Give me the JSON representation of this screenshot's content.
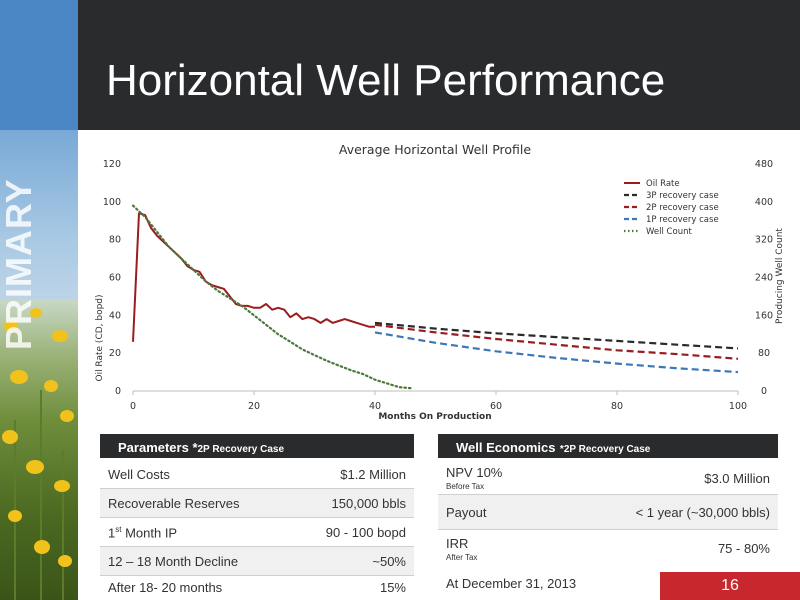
{
  "slide": {
    "title": "Horizontal Well Performance",
    "side_word": "PRIMARY",
    "footer_date": "At December 31, 2013",
    "page_number": "16"
  },
  "parameters_table": {
    "title": "Parameters *",
    "title_suffix": "2P Recovery Case",
    "rows": [
      {
        "label": "Well Costs",
        "value": "$1.2 Million"
      },
      {
        "label": "Recoverable Reserves",
        "value": "150,000 bbls"
      },
      {
        "label_main": "1",
        "label_sup": "st",
        "label_rest": " Month IP",
        "value": "90 - 100  bopd"
      },
      {
        "label": "12 – 18 Month Decline",
        "value": "~50%"
      },
      {
        "label": "After 18- 20 months",
        "value": "15%"
      }
    ]
  },
  "economics_table": {
    "title": "Well Economics",
    "title_suffix": "*2P Recovery Case",
    "rows": [
      {
        "label": "NPV 10%",
        "note": "Before Tax",
        "value": "$3.0 Million"
      },
      {
        "label": "Payout",
        "note": "",
        "value": "< 1 year (~30,000 bbls)"
      },
      {
        "label": "IRR",
        "note": "After Tax",
        "value": "75 - 80%"
      }
    ]
  },
  "colors": {
    "oil_rate": "#9b1c1f",
    "p3": "#2a2a2a",
    "p2": "#9b1c1f",
    "p1": "#3d77b8",
    "well_count": "#4d7a3a",
    "page_badge": "#c8272d",
    "header": "#2a2b2d"
  },
  "chart_data": {
    "type": "line",
    "title": "Average Horizontal Well  Profile",
    "xlabel": "Months On Production",
    "ylabel": "Oil Rate (CD, bopd)",
    "y2label": "Producing Well Count",
    "xlim": [
      0,
      100
    ],
    "ylim": [
      0,
      120
    ],
    "y2lim": [
      0,
      480
    ],
    "x_ticks": [
      0,
      20,
      40,
      60,
      80,
      100
    ],
    "y_ticks": [
      0,
      20,
      40,
      60,
      80,
      100,
      120
    ],
    "y2_ticks": [
      0,
      80,
      160,
      240,
      320,
      400,
      480
    ],
    "grid": false,
    "legend_position": "top-right",
    "series": [
      {
        "name": "Oil Rate",
        "style": "solid",
        "axis": "left",
        "x": [
          0,
          1,
          2,
          3,
          4,
          5,
          6,
          7,
          8,
          9,
          10,
          11,
          12,
          13,
          14,
          15,
          16,
          17,
          18,
          19,
          20,
          21,
          22,
          23,
          24,
          25,
          26,
          27,
          28,
          29,
          30,
          31,
          32,
          33,
          34,
          35,
          36,
          37,
          38,
          39,
          40
        ],
        "y": [
          26,
          94,
          93,
          86,
          82,
          79,
          76,
          73,
          70,
          66,
          64,
          63,
          58,
          56,
          55,
          54,
          50,
          46,
          45,
          45,
          44,
          44,
          46,
          43,
          44,
          43,
          39,
          41,
          38,
          39,
          38,
          36,
          38,
          36,
          37,
          38,
          37,
          36,
          35,
          34,
          34
        ]
      },
      {
        "name": "3P recovery case",
        "style": "dashed",
        "axis": "left",
        "x": [
          40,
          50,
          60,
          70,
          80,
          90,
          100
        ],
        "y": [
          36,
          33,
          30.5,
          28.5,
          26.5,
          24.5,
          22.5
        ]
      },
      {
        "name": "2P recovery case",
        "style": "dashed",
        "axis": "left",
        "x": [
          40,
          50,
          60,
          70,
          80,
          90,
          100
        ],
        "y": [
          35,
          31,
          27.5,
          24.5,
          21.5,
          19.5,
          17
        ]
      },
      {
        "name": "1P recovery case",
        "style": "dashed",
        "axis": "left",
        "x": [
          40,
          50,
          60,
          70,
          80,
          90,
          100
        ],
        "y": [
          31,
          25.5,
          21,
          17.5,
          14.5,
          12,
          10
        ]
      },
      {
        "name": "Well Count",
        "style": "dotted",
        "axis": "right",
        "x": [
          0,
          2,
          4,
          6,
          8,
          10,
          12,
          14,
          16,
          18,
          20,
          22,
          24,
          26,
          28,
          30,
          32,
          34,
          36,
          38,
          40,
          42,
          44,
          46
        ],
        "y": [
          392,
          368,
          336,
          304,
          280,
          256,
          232,
          212,
          196,
          180,
          160,
          140,
          120,
          104,
          88,
          76,
          64,
          54,
          44,
          36,
          24,
          16,
          8,
          6
        ]
      }
    ]
  }
}
